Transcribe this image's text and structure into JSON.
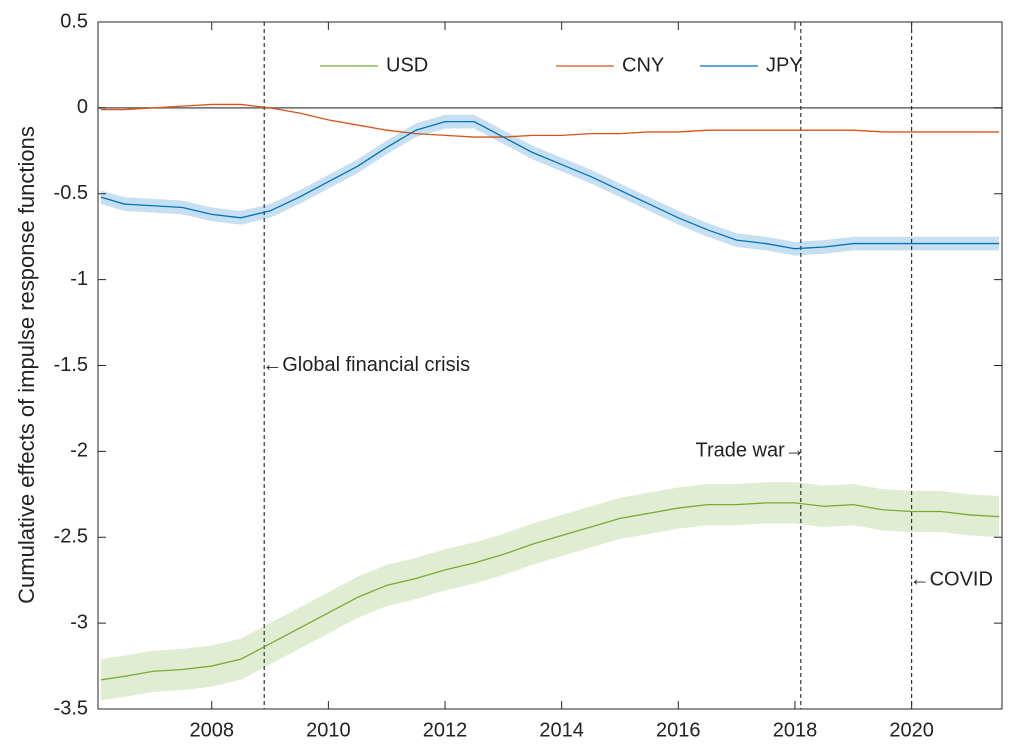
{
  "chart_data": {
    "type": "line",
    "y_label": "Cumulative effects of impulse response functions",
    "x": [
      2006.1,
      2006.5,
      2007,
      2007.5,
      2008,
      2008.5,
      2009,
      2009.5,
      2010,
      2010.5,
      2011,
      2011.5,
      2012,
      2012.5,
      2013,
      2013.5,
      2014,
      2014.5,
      2015,
      2015.5,
      2016,
      2016.5,
      2017,
      2017.5,
      2018,
      2018.5,
      2019,
      2019.5,
      2020,
      2020.5,
      2021,
      2021.5
    ],
    "series": [
      {
        "name": "USD",
        "color": "#77ac30",
        "band": 0.12,
        "values": [
          -3.33,
          -3.31,
          -3.28,
          -3.27,
          -3.25,
          -3.21,
          -3.12,
          -3.03,
          -2.94,
          -2.85,
          -2.78,
          -2.74,
          -2.69,
          -2.65,
          -2.6,
          -2.54,
          -2.49,
          -2.44,
          -2.39,
          -2.36,
          -2.33,
          -2.31,
          -2.31,
          -2.3,
          -2.3,
          -2.32,
          -2.31,
          -2.34,
          -2.35,
          -2.35,
          -2.37,
          -2.38
        ]
      },
      {
        "name": "CNY",
        "color": "#d95319",
        "band": 0,
        "values": [
          -0.01,
          -0.01,
          0,
          0.01,
          0.02,
          0.02,
          0,
          -0.03,
          -0.07,
          -0.1,
          -0.13,
          -0.15,
          -0.16,
          -0.17,
          -0.17,
          -0.16,
          -0.16,
          -0.15,
          -0.15,
          -0.14,
          -0.14,
          -0.13,
          -0.13,
          -0.13,
          -0.13,
          -0.13,
          -0.13,
          -0.14,
          -0.14,
          -0.14,
          -0.14,
          -0.14
        ]
      },
      {
        "name": "JPY",
        "color": "#0072bd",
        "band": 0.04,
        "values": [
          -0.52,
          -0.56,
          -0.57,
          -0.58,
          -0.62,
          -0.64,
          -0.6,
          -0.52,
          -0.43,
          -0.34,
          -0.23,
          -0.13,
          -0.08,
          -0.08,
          -0.17,
          -0.26,
          -0.33,
          -0.4,
          -0.48,
          -0.56,
          -0.64,
          -0.71,
          -0.77,
          -0.79,
          -0.82,
          -0.81,
          -0.79,
          -0.79,
          -0.79,
          -0.79,
          -0.79,
          -0.79
        ]
      }
    ],
    "xlim": [
      2006.05,
      2021.55
    ],
    "xticks": [
      2008,
      2010,
      2012,
      2014,
      2016,
      2018,
      2020
    ],
    "ylim": [
      -3.5,
      0.5
    ],
    "yticks": [
      -3.5,
      -3,
      -2.5,
      -2,
      -1.5,
      -1,
      -0.5,
      0,
      0.5
    ],
    "hline": 0,
    "annotations": [
      {
        "text": "←Global financial crisis",
        "x": 2008.9
      },
      {
        "text": "Trade war→",
        "x": 2018.1
      },
      {
        "text": "←COVID",
        "x": 2020
      }
    ],
    "legend": "top"
  }
}
